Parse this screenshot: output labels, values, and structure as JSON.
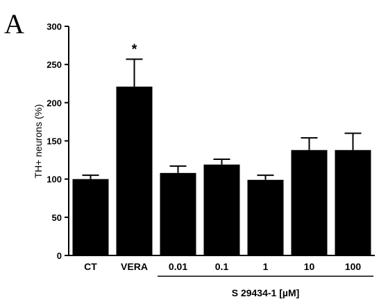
{
  "panel_label": "A",
  "chart_data": {
    "type": "bar",
    "ylabel": "TH+ neurons (%)",
    "ylim": [
      0,
      300
    ],
    "yticks": [
      "0",
      "50",
      "100",
      "150",
      "200",
      "250",
      "300"
    ],
    "categories": [
      "CT",
      "VERA",
      "0.01",
      "0.1",
      "1",
      "10",
      "100"
    ],
    "values": [
      100,
      221,
      108,
      119,
      99,
      138,
      138
    ],
    "errors": [
      5,
      36,
      9,
      7,
      6,
      16,
      22
    ],
    "significance": [
      "",
      "*",
      "",
      "",
      "",
      "",
      ""
    ],
    "group_label": "S 29434-1 [µM]",
    "group_categories": [
      2,
      6
    ],
    "bar_color": "#000000",
    "grid": false
  }
}
